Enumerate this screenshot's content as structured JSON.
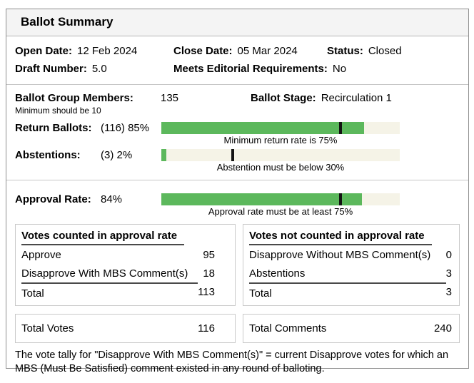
{
  "title": "Ballot Summary",
  "meta": {
    "open_date_label": "Open Date:",
    "open_date": "12 Feb 2024",
    "close_date_label": "Close Date:",
    "close_date": "05 Mar 2024",
    "status_label": "Status:",
    "status": "Closed",
    "draft_number_label": "Draft Number:",
    "draft_number": "5.0",
    "meets_editorial_label": "Meets Editorial Requirements:",
    "meets_editorial": "No"
  },
  "ballot": {
    "group_members_label": "Ballot Group Members:",
    "group_members": "135",
    "group_members_note": "Minimum should be 10",
    "stage_label": "Ballot Stage:",
    "stage": "Recirculation 1"
  },
  "bars": {
    "return": {
      "label": "Return Ballots:",
      "value_text": "(116) 85%",
      "percent": 85,
      "threshold": 75,
      "caption": "Minimum return rate is 75%"
    },
    "abstentions": {
      "label": "Abstentions:",
      "value_text": "(3) 2%",
      "percent": 2,
      "threshold": 30,
      "caption": "Abstention must be below 30%"
    },
    "approval": {
      "label": "Approval Rate:",
      "value_text": "84%",
      "percent": 84,
      "threshold": 75,
      "caption": "Approval rate must be at least 75%"
    }
  },
  "tables": {
    "counted": {
      "header": "Votes counted in approval rate",
      "rows": [
        {
          "label": "Approve",
          "value": "95"
        },
        {
          "label": "Disapprove With MBS Comment(s)",
          "value": "18"
        }
      ],
      "total_label": "Total",
      "total": "113"
    },
    "not_counted": {
      "header": "Votes not counted in approval rate",
      "rows": [
        {
          "label": "Disapprove Without MBS Comment(s)",
          "value": "0"
        },
        {
          "label": "Abstentions",
          "value": "3"
        }
      ],
      "total_label": "Total",
      "total": "3"
    }
  },
  "totals": {
    "votes_label": "Total Votes",
    "votes": "116",
    "comments_label": "Total Comments",
    "comments": "240"
  },
  "footnote": "The vote tally for \"Disapprove With MBS Comment(s)\" = current Disapprove votes for which an MBS (Must Be Satisfied) comment existed in any round of balloting.",
  "colors": {
    "bar_fill": "#5cb85c",
    "bar_track": "#f5f3e7",
    "bar_tick": "#141414"
  }
}
